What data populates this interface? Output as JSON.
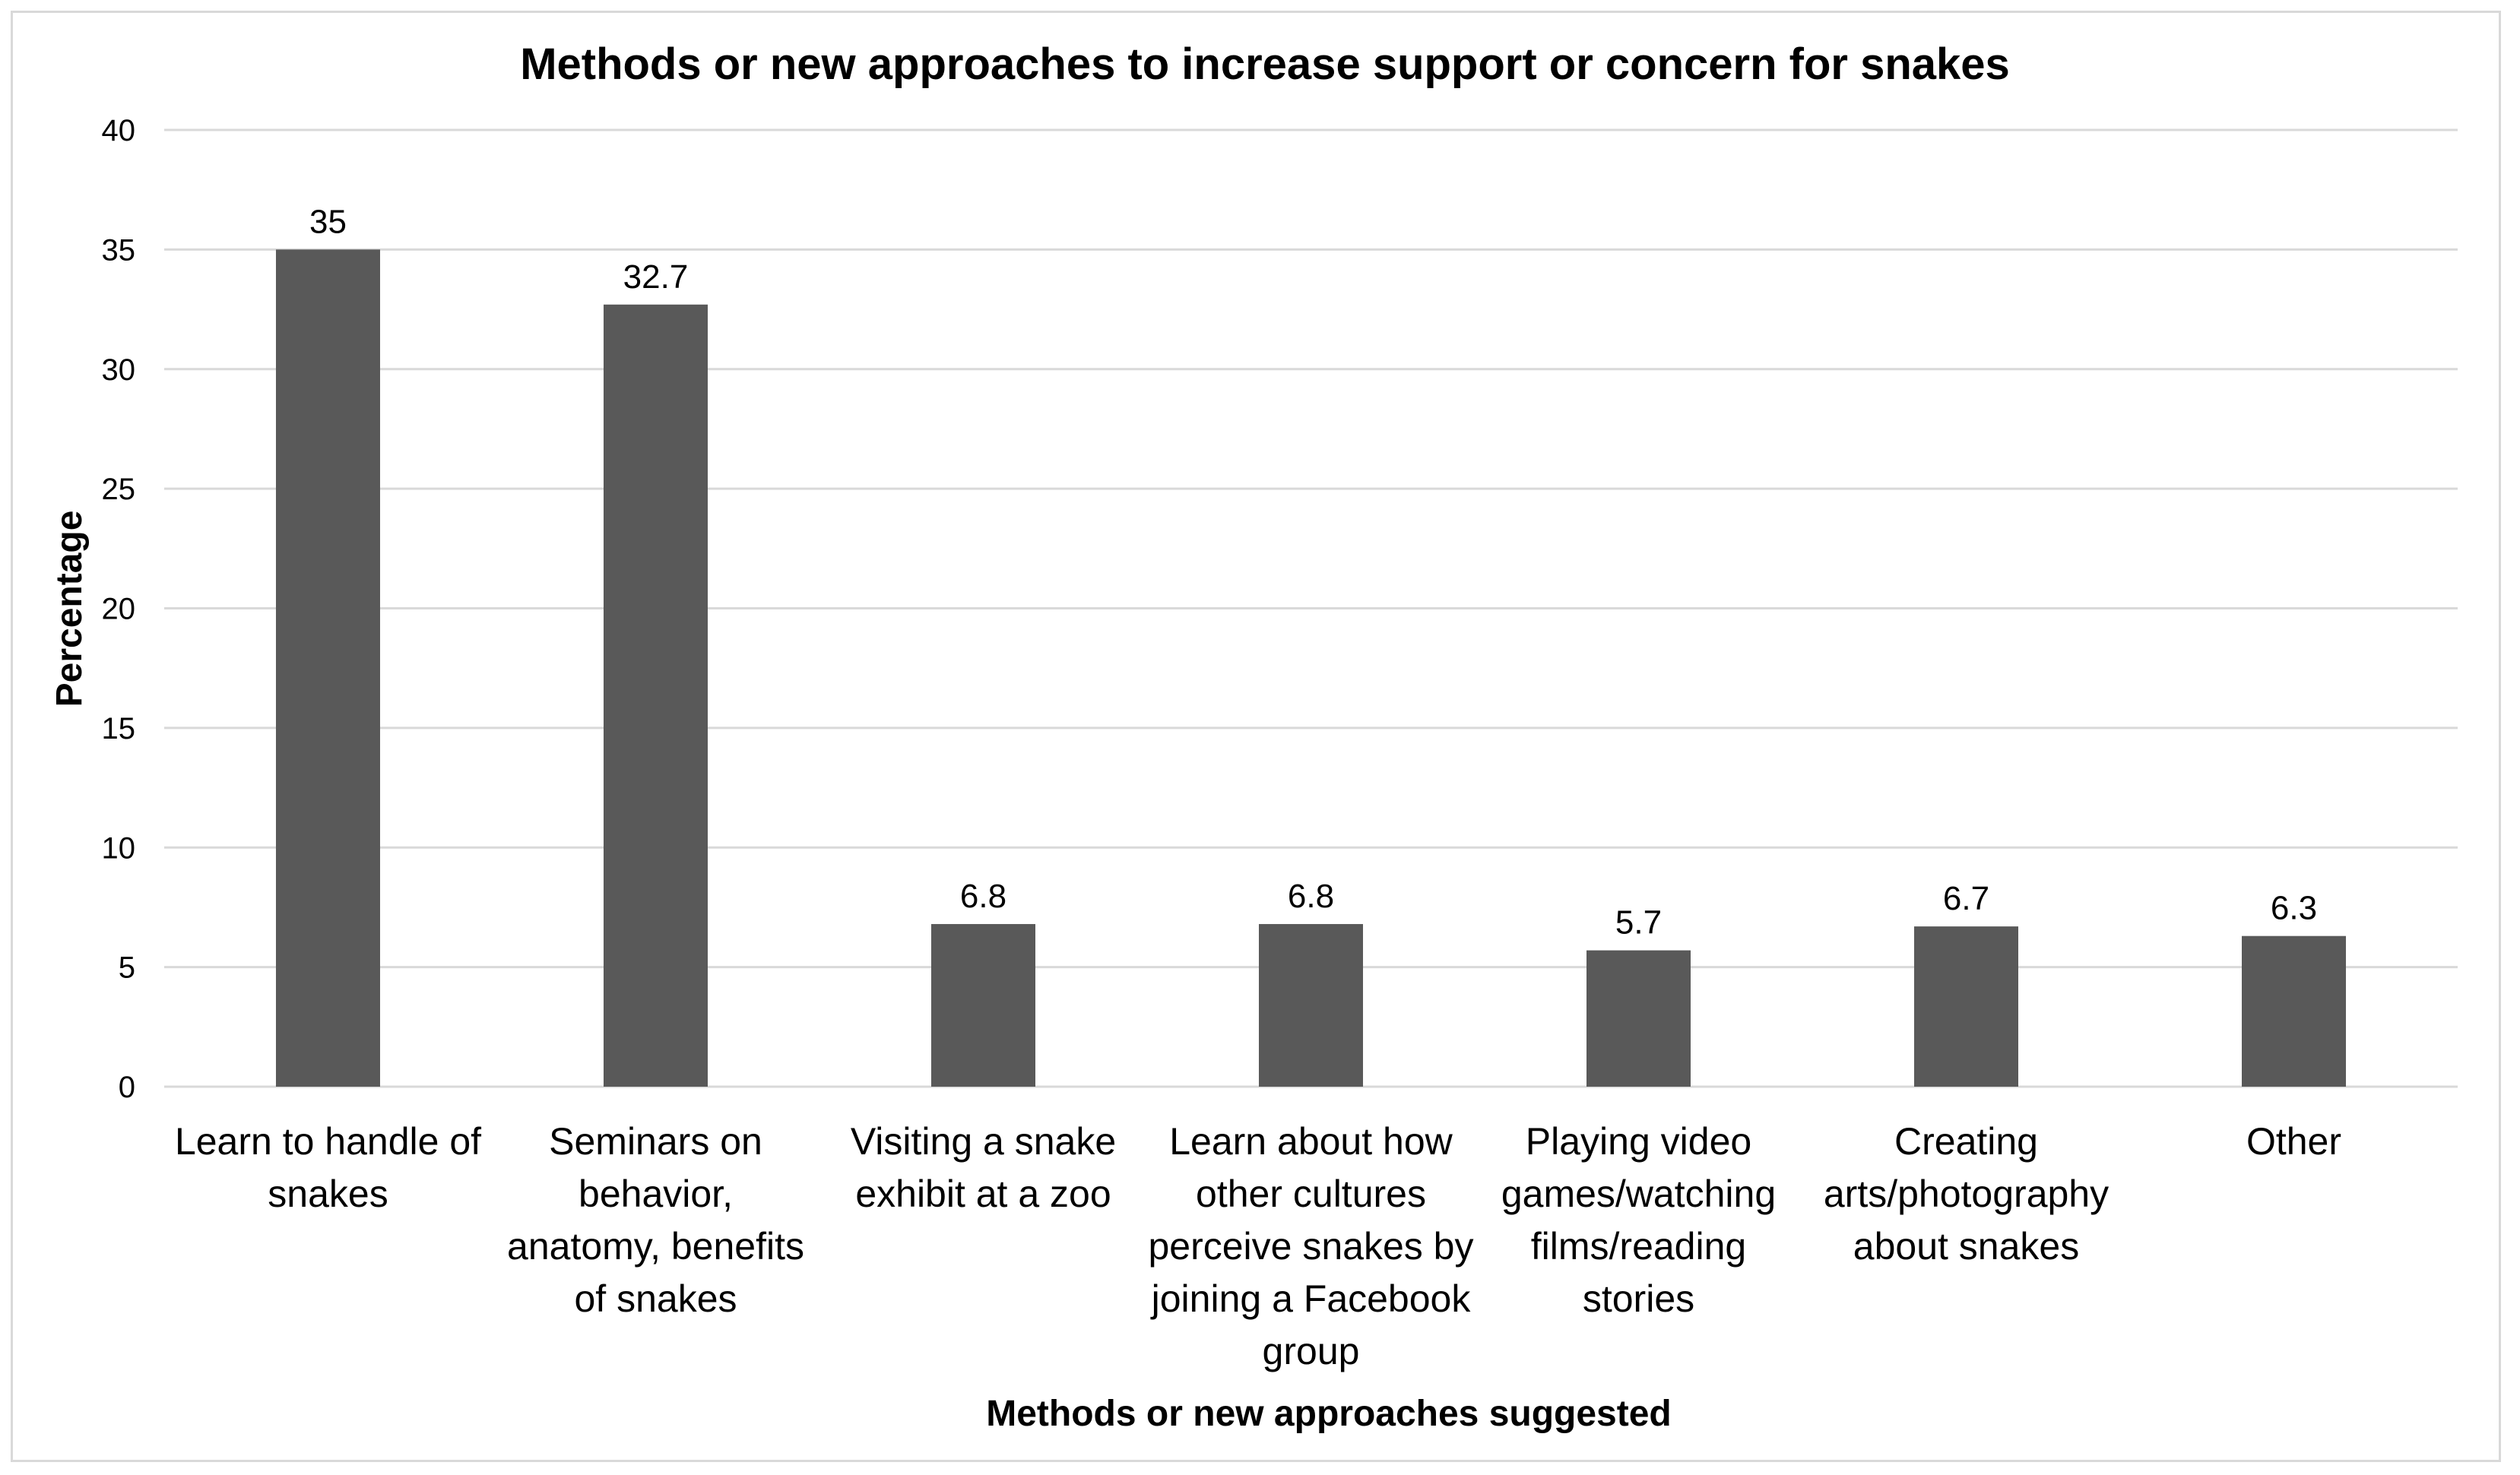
{
  "chart_data": {
    "type": "bar",
    "title": "Methods or new approaches to increase support or concern for snakes",
    "xlabel": "Methods or new approaches suggested",
    "ylabel": "Percentage",
    "ylim": [
      0,
      40
    ],
    "yticks": [
      0,
      5,
      10,
      15,
      20,
      25,
      30,
      35,
      40
    ],
    "grid": true,
    "legend": "none",
    "bar_color": "#595959",
    "categories": [
      [
        "Learn to handle of",
        "snakes"
      ],
      [
        "Seminars on",
        "behavior,",
        "anatomy, benefits",
        "of snakes"
      ],
      [
        "Visiting a snake",
        "exhibit at a zoo"
      ],
      [
        "Learn about how",
        "other cultures",
        "perceive snakes by",
        "joining a Facebook",
        "group"
      ],
      [
        "Playing video",
        "games/watching",
        "films/reading",
        "stories"
      ],
      [
        "Creating",
        "arts/photography",
        "about snakes"
      ],
      [
        "Other"
      ]
    ],
    "values": [
      35,
      32.7,
      6.8,
      6.8,
      5.7,
      6.7,
      6.3
    ],
    "value_labels": [
      "35",
      "32.7",
      "6.8",
      "6.8",
      "5.7",
      "6.7",
      "6.3"
    ]
  }
}
